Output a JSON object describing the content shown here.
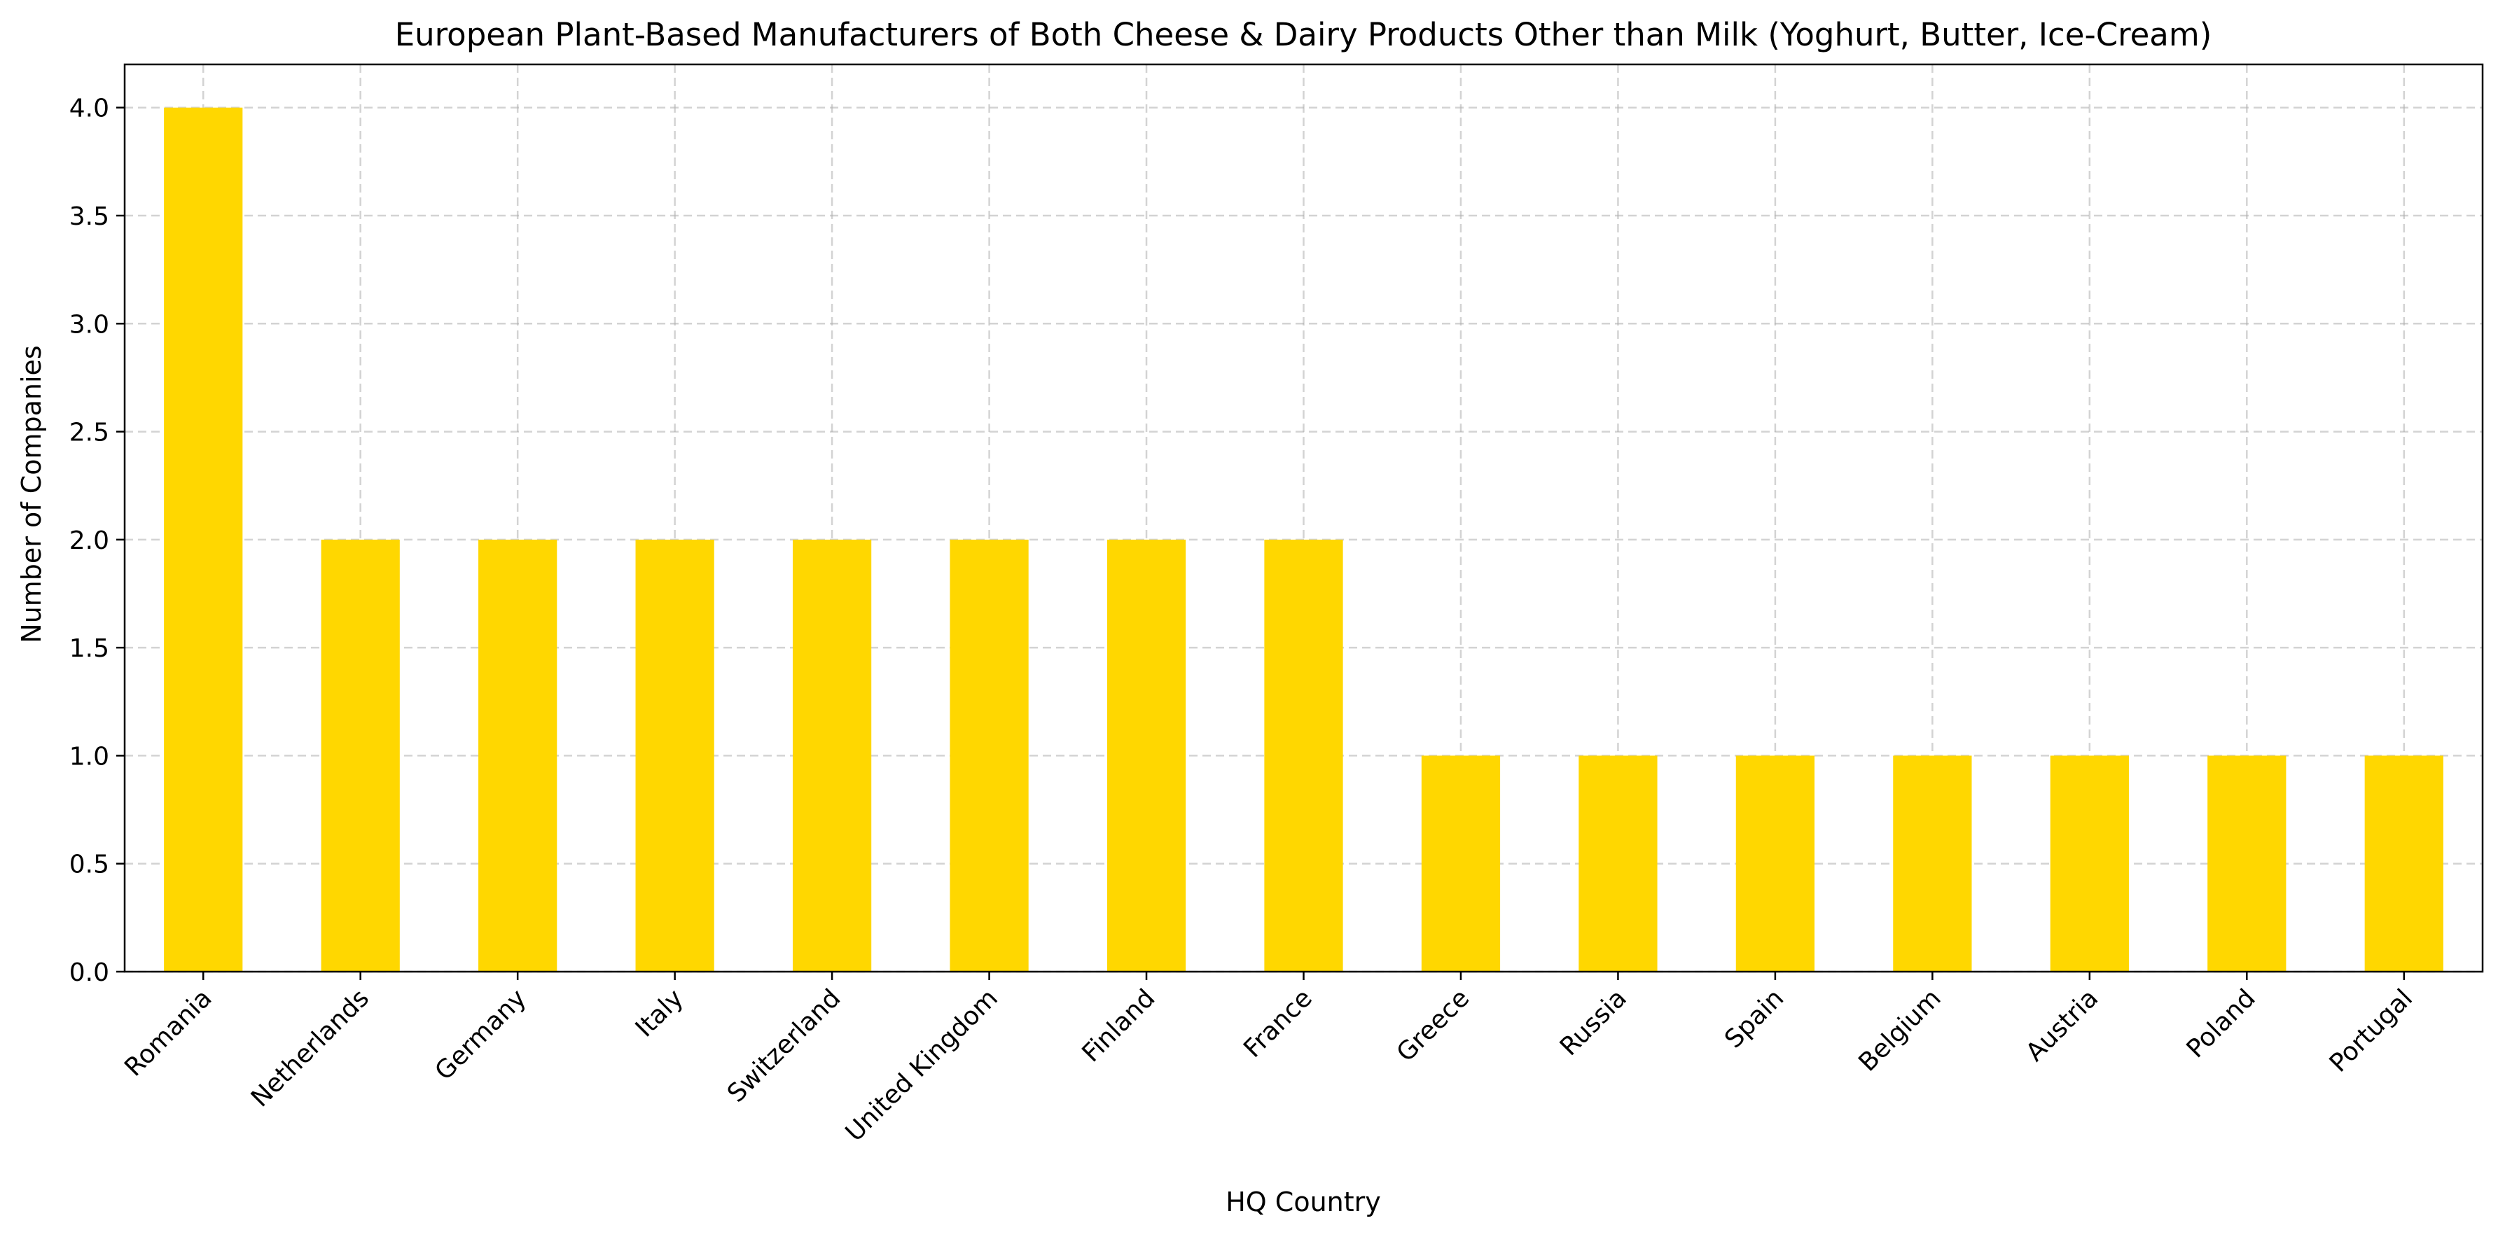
{
  "chart_data": {
    "type": "bar",
    "title": "European Plant-Based Manufacturers of Both Cheese & Dairy Products Other than Milk (Yoghurt, Butter, Ice-Cream)",
    "xlabel": "HQ Country",
    "ylabel": "Number of Companies",
    "categories": [
      "Romania",
      "Netherlands",
      "Germany",
      "Italy",
      "Switzerland",
      "United Kingdom",
      "Finland",
      "France",
      "Greece",
      "Russia",
      "Spain",
      "Belgium",
      "Austria",
      "Poland",
      "Portugal"
    ],
    "values": [
      4,
      2,
      2,
      2,
      2,
      2,
      2,
      2,
      1,
      1,
      1,
      1,
      1,
      1,
      1
    ],
    "ylim": [
      0,
      4.2
    ],
    "yticks": [
      "0.0",
      "0.5",
      "1.0",
      "1.5",
      "2.0",
      "2.5",
      "3.0",
      "3.5",
      "4.0"
    ],
    "grid": true,
    "bar_color": "#FFD700",
    "x_tick_rotation_deg": 45
  }
}
